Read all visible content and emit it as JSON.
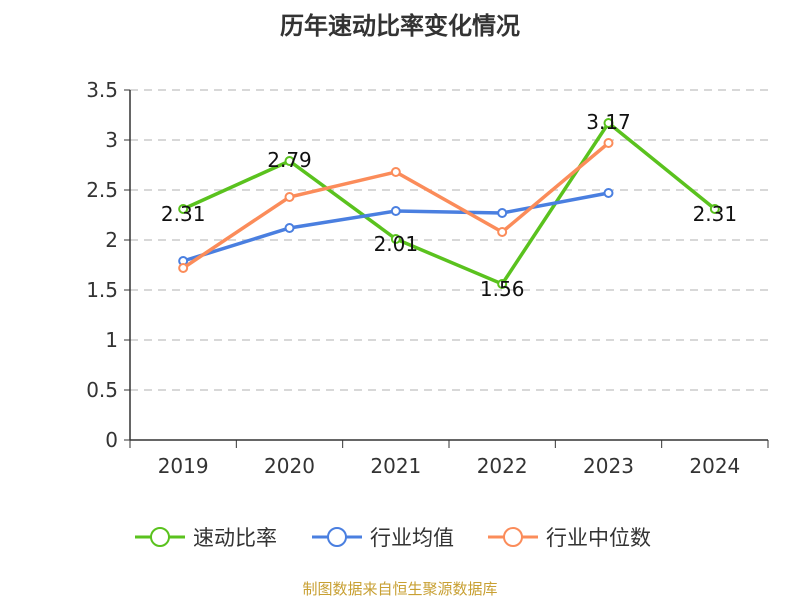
{
  "chart_data": {
    "type": "line",
    "title": "历年速动比率变化情况",
    "categories": [
      "2019",
      "2020",
      "2021",
      "2022",
      "2023",
      "2024"
    ],
    "ylim": [
      0,
      3.5
    ],
    "yticks": [
      "0",
      "0.5",
      "1",
      "1.5",
      "2",
      "2.5",
      "3",
      "3.5"
    ],
    "grid": true,
    "legend_position": "bottom",
    "series": [
      {
        "name": "速动比率",
        "color": "#5ac21e",
        "values": [
          2.31,
          2.79,
          2.01,
          1.56,
          3.17,
          2.31
        ],
        "labels": [
          "2.31",
          "2.79",
          "2.01",
          "1.56",
          "3.17",
          "2.31"
        ]
      },
      {
        "name": "行业均值",
        "color": "#4a7fe0",
        "values": [
          1.79,
          2.12,
          2.29,
          2.27,
          2.47,
          null
        ]
      },
      {
        "name": "行业中位数",
        "color": "#fb8c5a",
        "values": [
          1.72,
          2.43,
          2.68,
          2.08,
          2.97,
          null
        ]
      }
    ]
  },
  "source": "制图数据来自恒生聚源数据库"
}
